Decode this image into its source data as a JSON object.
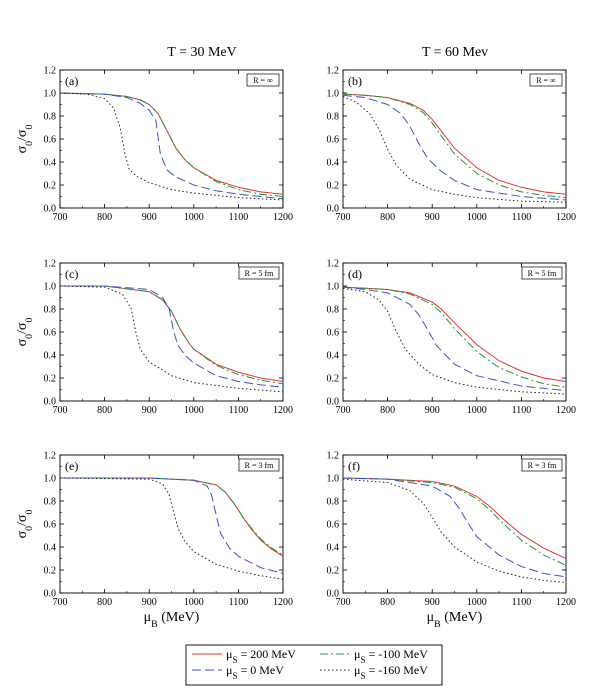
{
  "column_titles": [
    "T = 30 MeV",
    "T = 60 Mev"
  ],
  "y_axis_label": "σ0/σ0",
  "x_axis_label": "μB (MeV)",
  "legend_entries": [
    {
      "label": "μS = 200 MeV",
      "color": "#e8322d",
      "dash": "solid"
    },
    {
      "label": "μS = -100 MeV",
      "color": "#1a9a34",
      "dash": "dashdot"
    },
    {
      "label": "μS = 0 MeV",
      "color": "#3a50d8",
      "dash": "dashed"
    },
    {
      "label": "μS = -160 MeV",
      "color": "#222222",
      "dash": "dotted"
    }
  ],
  "chart_data": [
    {
      "type": "line",
      "panel": "(a)",
      "box_label": "R = ∞",
      "xlim": [
        700,
        1200
      ],
      "ylim": [
        0,
        1.2
      ],
      "xticks": [
        700,
        800,
        900,
        1000,
        1100,
        1200
      ],
      "yticks": [
        0.0,
        0.2,
        0.4,
        0.6,
        0.8,
        1.0,
        1.2
      ],
      "series": [
        {
          "x": [
            700,
            800,
            850,
            880,
            900,
            920,
            940,
            960,
            980,
            1000,
            1050,
            1100,
            1150,
            1200
          ],
          "values": [
            1.0,
            0.99,
            0.97,
            0.94,
            0.9,
            0.82,
            0.67,
            0.52,
            0.42,
            0.35,
            0.24,
            0.18,
            0.14,
            0.12
          ]
        },
        {
          "x": [
            700,
            800,
            850,
            880,
            900,
            920,
            940,
            960,
            980,
            1000,
            1050,
            1100,
            1150,
            1200
          ],
          "values": [
            1.0,
            0.99,
            0.97,
            0.94,
            0.9,
            0.82,
            0.67,
            0.52,
            0.42,
            0.35,
            0.23,
            0.16,
            0.12,
            0.1
          ]
        },
        {
          "x": [
            700,
            800,
            850,
            880,
            900,
            915,
            925,
            940,
            960,
            1000,
            1050,
            1100,
            1150,
            1200
          ],
          "values": [
            1.0,
            0.99,
            0.96,
            0.91,
            0.85,
            0.76,
            0.47,
            0.33,
            0.27,
            0.2,
            0.15,
            0.12,
            0.1,
            0.08
          ]
        },
        {
          "x": [
            700,
            760,
            800,
            820,
            835,
            845,
            855,
            870,
            900,
            950,
            1000,
            1100,
            1200
          ],
          "values": [
            1.0,
            0.99,
            0.95,
            0.87,
            0.7,
            0.48,
            0.34,
            0.28,
            0.22,
            0.16,
            0.13,
            0.09,
            0.07
          ]
        }
      ]
    },
    {
      "type": "line",
      "panel": "(b)",
      "box_label": "R = ∞",
      "xlim": [
        700,
        1200
      ],
      "ylim": [
        0,
        1.2
      ],
      "xticks": [
        700,
        800,
        900,
        1000,
        1100,
        1200
      ],
      "yticks": [
        0.0,
        0.2,
        0.4,
        0.6,
        0.8,
        1.0,
        1.2
      ],
      "series": [
        {
          "x": [
            700,
            750,
            800,
            850,
            880,
            900,
            920,
            950,
            1000,
            1050,
            1100,
            1150,
            1200
          ],
          "values": [
            0.99,
            0.98,
            0.96,
            0.91,
            0.85,
            0.77,
            0.67,
            0.52,
            0.35,
            0.24,
            0.18,
            0.14,
            0.12
          ]
        },
        {
          "x": [
            700,
            750,
            800,
            850,
            880,
            900,
            920,
            950,
            1000,
            1050,
            1100,
            1150,
            1200
          ],
          "values": [
            0.99,
            0.98,
            0.96,
            0.9,
            0.83,
            0.74,
            0.63,
            0.47,
            0.3,
            0.2,
            0.14,
            0.11,
            0.09
          ]
        },
        {
          "x": [
            700,
            750,
            800,
            830,
            850,
            870,
            890,
            920,
            950,
            1000,
            1100,
            1200
          ],
          "values": [
            0.98,
            0.96,
            0.9,
            0.82,
            0.71,
            0.56,
            0.43,
            0.32,
            0.24,
            0.16,
            0.1,
            0.07
          ]
        },
        {
          "x": [
            700,
            730,
            760,
            780,
            800,
            820,
            850,
            900,
            950,
            1000,
            1100,
            1200
          ],
          "values": [
            0.97,
            0.92,
            0.82,
            0.69,
            0.51,
            0.37,
            0.25,
            0.16,
            0.12,
            0.09,
            0.06,
            0.05
          ]
        }
      ]
    },
    {
      "type": "line",
      "panel": "(c)",
      "box_label": "R = 5 fm",
      "xlim": [
        700,
        1200
      ],
      "ylim": [
        0,
        1.2
      ],
      "xticks": [
        700,
        800,
        900,
        1000,
        1100,
        1200
      ],
      "yticks": [
        0.0,
        0.2,
        0.4,
        0.6,
        0.8,
        1.0,
        1.2
      ],
      "series": [
        {
          "x": [
            700,
            800,
            900,
            930,
            950,
            970,
            990,
            1000,
            1050,
            1100,
            1150,
            1200
          ],
          "values": [
            1.0,
            1.0,
            0.95,
            0.88,
            0.78,
            0.62,
            0.5,
            0.45,
            0.32,
            0.25,
            0.2,
            0.17
          ]
        },
        {
          "x": [
            700,
            800,
            900,
            930,
            950,
            970,
            990,
            1000,
            1050,
            1100,
            1150,
            1200
          ],
          "values": [
            1.0,
            1.0,
            0.95,
            0.88,
            0.78,
            0.62,
            0.5,
            0.45,
            0.31,
            0.23,
            0.18,
            0.15
          ]
        },
        {
          "x": [
            700,
            800,
            900,
            930,
            945,
            955,
            965,
            980,
            1000,
            1050,
            1100,
            1150,
            1200
          ],
          "values": [
            1.0,
            1.0,
            0.97,
            0.9,
            0.8,
            0.6,
            0.48,
            0.4,
            0.33,
            0.22,
            0.17,
            0.14,
            0.12
          ]
        },
        {
          "x": [
            700,
            800,
            840,
            860,
            870,
            880,
            900,
            950,
            1000,
            1100,
            1200
          ],
          "values": [
            1.0,
            0.99,
            0.93,
            0.8,
            0.6,
            0.45,
            0.34,
            0.22,
            0.16,
            0.11,
            0.08
          ]
        }
      ]
    },
    {
      "type": "line",
      "panel": "(d)",
      "box_label": "R = 5 fm",
      "xlim": [
        700,
        1200
      ],
      "ylim": [
        0,
        1.2
      ],
      "xticks": [
        700,
        800,
        900,
        1000,
        1100,
        1200
      ],
      "yticks": [
        0.0,
        0.2,
        0.4,
        0.6,
        0.8,
        1.0,
        1.2
      ],
      "series": [
        {
          "x": [
            700,
            750,
            800,
            850,
            900,
            920,
            950,
            1000,
            1050,
            1100,
            1150,
            1200
          ],
          "values": [
            0.99,
            0.98,
            0.97,
            0.94,
            0.86,
            0.8,
            0.68,
            0.49,
            0.35,
            0.26,
            0.2,
            0.17
          ]
        },
        {
          "x": [
            700,
            750,
            800,
            850,
            900,
            920,
            950,
            1000,
            1050,
            1100,
            1150,
            1200
          ],
          "values": [
            0.99,
            0.98,
            0.97,
            0.93,
            0.84,
            0.77,
            0.63,
            0.43,
            0.29,
            0.21,
            0.15,
            0.12
          ]
        },
        {
          "x": [
            700,
            750,
            800,
            850,
            870,
            890,
            910,
            950,
            1000,
            1100,
            1200
          ],
          "values": [
            0.99,
            0.97,
            0.94,
            0.84,
            0.75,
            0.62,
            0.48,
            0.32,
            0.22,
            0.13,
            0.09
          ]
        },
        {
          "x": [
            700,
            750,
            780,
            800,
            820,
            840,
            870,
            900,
            950,
            1000,
            1100,
            1200
          ],
          "values": [
            0.98,
            0.95,
            0.88,
            0.78,
            0.6,
            0.45,
            0.32,
            0.23,
            0.16,
            0.12,
            0.08,
            0.06
          ]
        }
      ]
    },
    {
      "type": "line",
      "panel": "(e)",
      "box_label": "R = 3 fm",
      "xlim": [
        700,
        1200
      ],
      "ylim": [
        0,
        1.2
      ],
      "xticks": [
        700,
        800,
        900,
        1000,
        1100,
        1200
      ],
      "yticks": [
        0.0,
        0.2,
        0.4,
        0.6,
        0.8,
        1.0,
        1.2
      ],
      "series": [
        {
          "x": [
            700,
            900,
            1000,
            1050,
            1070,
            1090,
            1110,
            1130,
            1150,
            1175,
            1200
          ],
          "values": [
            1.0,
            1.0,
            0.98,
            0.94,
            0.88,
            0.78,
            0.66,
            0.55,
            0.46,
            0.38,
            0.32
          ]
        },
        {
          "x": [
            700,
            900,
            1000,
            1050,
            1070,
            1090,
            1110,
            1130,
            1150,
            1175,
            1200
          ],
          "values": [
            1.0,
            1.0,
            0.98,
            0.94,
            0.88,
            0.78,
            0.66,
            0.56,
            0.47,
            0.39,
            0.33
          ]
        },
        {
          "x": [
            700,
            900,
            1000,
            1030,
            1040,
            1050,
            1060,
            1080,
            1100,
            1150,
            1200
          ],
          "values": [
            1.0,
            1.0,
            0.98,
            0.93,
            0.85,
            0.68,
            0.52,
            0.39,
            0.32,
            0.22,
            0.17
          ]
        },
        {
          "x": [
            700,
            900,
            930,
            945,
            955,
            965,
            980,
            1000,
            1050,
            1100,
            1150,
            1200
          ],
          "values": [
            1.0,
            0.99,
            0.95,
            0.85,
            0.7,
            0.56,
            0.45,
            0.36,
            0.25,
            0.19,
            0.15,
            0.12
          ]
        }
      ]
    },
    {
      "type": "line",
      "panel": "(f)",
      "box_label": "R = 3 fm",
      "xlim": [
        700,
        1200
      ],
      "ylim": [
        0,
        1.2
      ],
      "xticks": [
        700,
        800,
        900,
        1000,
        1100,
        1200
      ],
      "yticks": [
        0.0,
        0.2,
        0.4,
        0.6,
        0.8,
        1.0,
        1.2
      ],
      "series": [
        {
          "x": [
            700,
            800,
            900,
            950,
            1000,
            1030,
            1060,
            1100,
            1150,
            1200
          ],
          "values": [
            1.0,
            0.99,
            0.97,
            0.93,
            0.84,
            0.75,
            0.64,
            0.51,
            0.39,
            0.3
          ]
        },
        {
          "x": [
            700,
            800,
            900,
            950,
            1000,
            1030,
            1060,
            1100,
            1150,
            1200
          ],
          "values": [
            1.0,
            0.99,
            0.96,
            0.92,
            0.82,
            0.72,
            0.6,
            0.46,
            0.33,
            0.24
          ]
        },
        {
          "x": [
            700,
            800,
            900,
            940,
            960,
            980,
            1000,
            1050,
            1100,
            1150,
            1200
          ],
          "values": [
            1.0,
            0.99,
            0.93,
            0.84,
            0.74,
            0.61,
            0.49,
            0.33,
            0.23,
            0.17,
            0.14
          ]
        },
        {
          "x": [
            700,
            800,
            850,
            880,
            900,
            920,
            950,
            1000,
            1050,
            1100,
            1150,
            1200
          ],
          "values": [
            0.99,
            0.96,
            0.89,
            0.78,
            0.66,
            0.53,
            0.4,
            0.27,
            0.19,
            0.14,
            0.11,
            0.09
          ]
        }
      ]
    }
  ]
}
